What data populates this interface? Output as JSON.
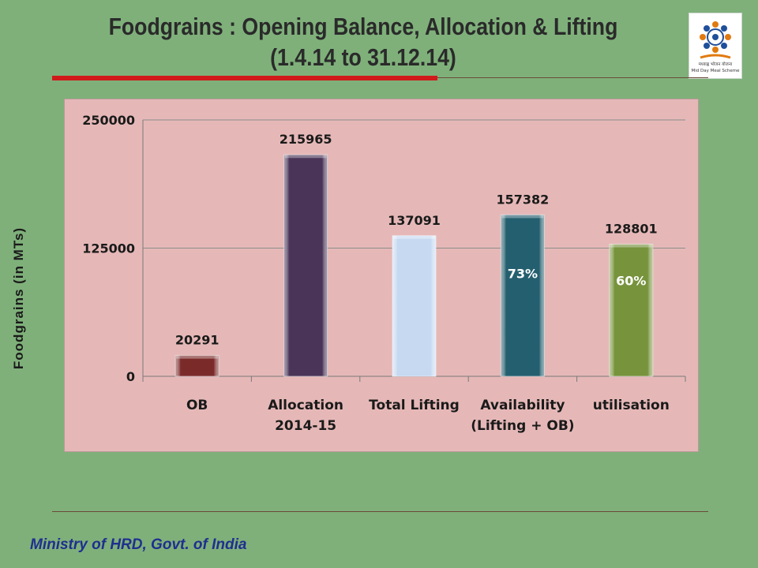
{
  "header": {
    "title_line1": "Foodgrains : Opening Balance, Allocation & Lifting",
    "title_line2": "(1.4.14 to 31.12.14)",
    "logo_text_hindi": "मध्याह्न भोजन योजना",
    "logo_text_en": "Mid Day Meal Scheme"
  },
  "footer": {
    "text": "Ministry of HRD, Govt. of India"
  },
  "colors": {
    "background": "#7fb07a",
    "plot_area": "#e5b8b7",
    "title_rule": "#d11a1a"
  },
  "chart_data": {
    "type": "bar",
    "title": "",
    "xlabel": "",
    "ylabel": "Foodgrains (in MTs)",
    "ylim": [
      0,
      250000
    ],
    "yticks": [
      0,
      125000,
      250000
    ],
    "grid": true,
    "legend": "none",
    "categories": [
      [
        "OB"
      ],
      [
        "Allocation",
        "2014-15"
      ],
      [
        "Total Lifting"
      ],
      [
        "Availability",
        "(Lifting + OB)"
      ],
      [
        "utilisation"
      ]
    ],
    "values": [
      20291,
      215965,
      137091,
      157382,
      128801
    ],
    "bar_colors": [
      "#7b2a2a",
      "#4a3558",
      "#c6d9f1",
      "#245f6f",
      "#77933c"
    ],
    "inner_labels": [
      "",
      "",
      "",
      "73%",
      "60%"
    ]
  }
}
